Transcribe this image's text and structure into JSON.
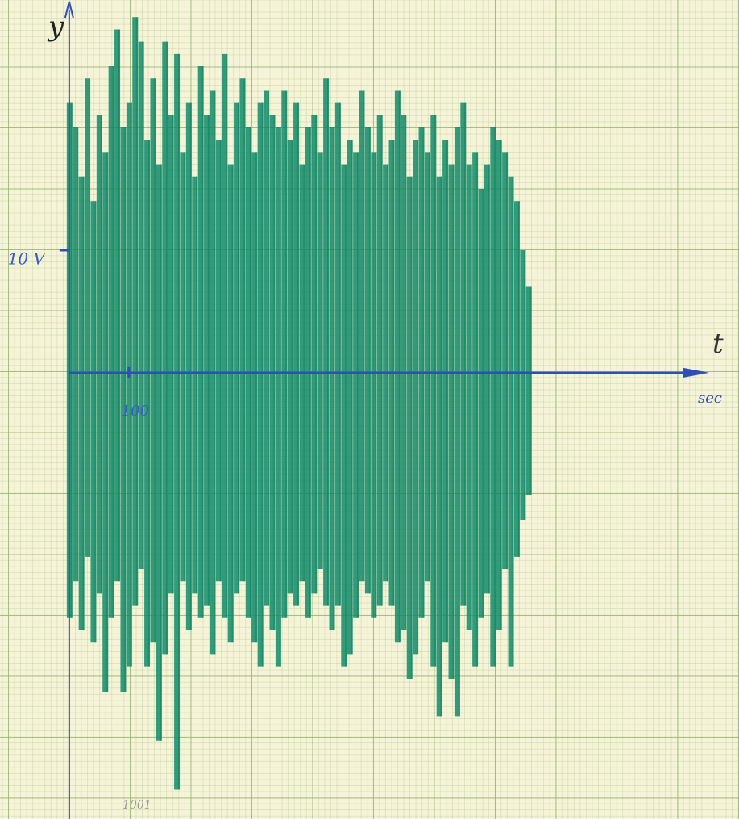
{
  "chart_data": {
    "type": "range",
    "y_label": "y",
    "x_label": "t",
    "x_unit": "sec",
    "note": "1001",
    "color": "#138a68",
    "axis_color": "#2f4fb8",
    "xlim": [
      -116,
      1123
    ],
    "ylim": [
      -36.4,
      30.4
    ],
    "xticks": [
      100
    ],
    "yticks": [
      {
        "value": 10,
        "label": "10 V"
      }
    ],
    "x": [
      0,
      10,
      20,
      30,
      40,
      50,
      60,
      70,
      80,
      90,
      100,
      110,
      120,
      130,
      140,
      150,
      160,
      170,
      180,
      190,
      200,
      210,
      220,
      230,
      240,
      250,
      260,
      270,
      280,
      290,
      300,
      310,
      320,
      330,
      340,
      350,
      360,
      370,
      380,
      390,
      400,
      410,
      420,
      430,
      440,
      450,
      460,
      470,
      480,
      490,
      500,
      510,
      520,
      530,
      540,
      550,
      560,
      570,
      580,
      590,
      600,
      610,
      620,
      630,
      640,
      650,
      660,
      670,
      680,
      690,
      700,
      710,
      720,
      730,
      740,
      750,
      760,
      770
    ],
    "high": [
      22,
      20,
      16,
      24,
      14,
      21,
      18,
      25,
      28,
      20,
      22,
      29,
      27,
      19,
      24,
      17,
      27,
      21,
      26,
      18,
      22,
      16,
      25,
      21,
      23,
      19,
      26,
      17,
      22,
      24,
      20,
      18,
      22,
      23,
      21,
      20,
      23,
      19,
      22,
      17,
      20,
      21,
      18,
      24,
      20,
      22,
      17,
      19,
      18,
      23,
      20,
      18,
      21,
      17,
      19,
      23,
      21,
      16,
      19,
      20,
      18,
      21,
      16,
      19,
      17,
      20,
      22,
      17,
      18,
      15,
      17,
      20,
      19,
      18,
      16,
      14,
      10,
      7
    ],
    "low": [
      -20,
      -17,
      -21,
      -15,
      -22,
      -18,
      -26,
      -20,
      -17,
      -26,
      -24,
      -19,
      -16,
      -24,
      -22,
      -30,
      -23,
      -18,
      -34,
      -17,
      -21,
      -18,
      -20,
      -19,
      -23,
      -17,
      -20,
      -22,
      -18,
      -17,
      -20,
      -22,
      -24,
      -19,
      -21,
      -24,
      -20,
      -18,
      -19,
      -17,
      -20,
      -18,
      -16,
      -19,
      -21,
      -19,
      -24,
      -23,
      -20,
      -17,
      -18,
      -20,
      -19,
      -17,
      -19,
      -22,
      -21,
      -25,
      -23,
      -20,
      -17,
      -24,
      -28,
      -22,
      -25,
      -28,
      -19,
      -21,
      -24,
      -20,
      -18,
      -24,
      -21,
      -16,
      -24,
      -15,
      -12,
      -10
    ]
  }
}
